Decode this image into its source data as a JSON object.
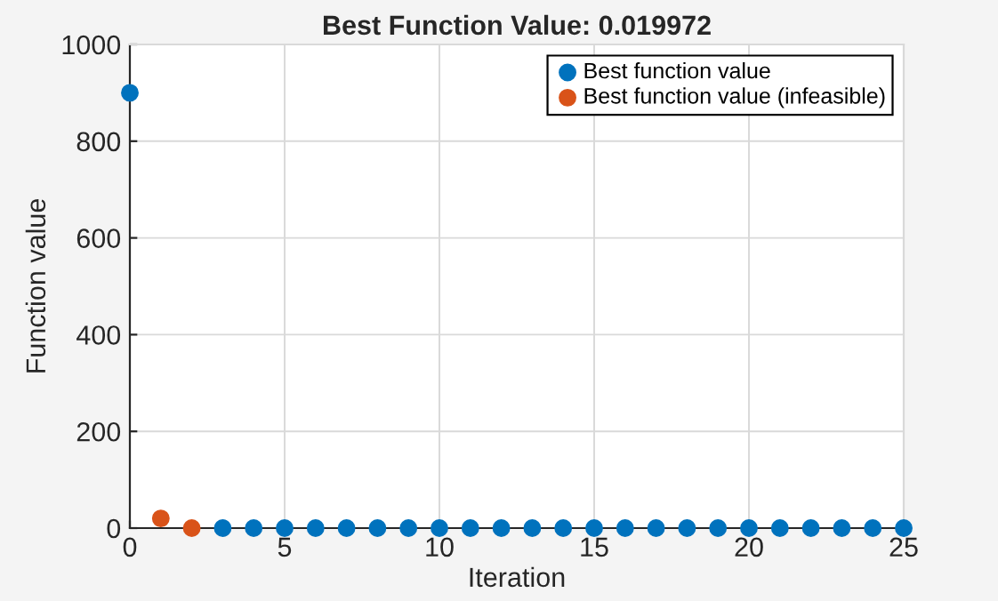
{
  "chart_data": {
    "type": "scatter",
    "title": "Best Function Value: 0.019972",
    "xlabel": "Iteration",
    "ylabel": "Function value",
    "series": [
      {
        "name": "Best function value",
        "color": "#0072bd",
        "x": [
          0,
          3,
          4,
          5,
          6,
          7,
          8,
          9,
          10,
          11,
          12,
          13,
          14,
          15,
          16,
          17,
          18,
          19,
          20,
          21,
          22,
          23,
          24,
          25
        ],
        "values": [
          900,
          0,
          0,
          0,
          0,
          0,
          0,
          0,
          0,
          0,
          0,
          0,
          0,
          0,
          0,
          0,
          0,
          0,
          0,
          0,
          0,
          0,
          0,
          0
        ]
      },
      {
        "name": "Best function value (infeasible)",
        "color": "#d95319",
        "x": [
          1,
          2
        ],
        "values": [
          20,
          0
        ]
      }
    ],
    "xlim": [
      0,
      25
    ],
    "xticks": [
      0,
      5,
      10,
      15,
      20,
      25
    ],
    "ylim": [
      0,
      1000
    ],
    "yticks": [
      0,
      200,
      400,
      600,
      800,
      1000
    ],
    "grid": true,
    "legend": "top right",
    "marker": "circle"
  }
}
